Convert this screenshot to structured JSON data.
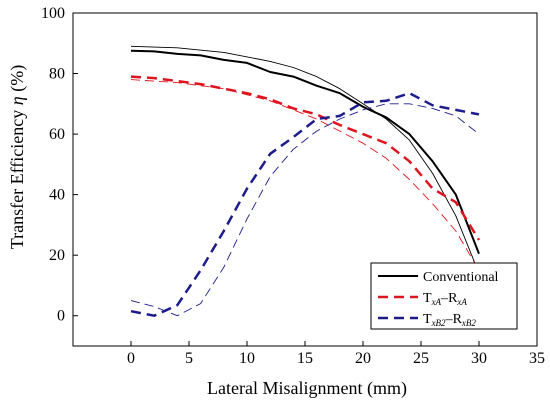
{
  "chart_data": {
    "type": "line",
    "title": "",
    "xlabel": "Lateral Misalignment (mm)",
    "ylabel_text": "Transfer Efficiency ",
    "ylabel_symbol": "η",
    "ylabel_unit": " (%)",
    "xlim": [
      -5,
      35
    ],
    "ylim": [
      -10,
      100
    ],
    "x_ticks": [
      0,
      5,
      10,
      15,
      20,
      25,
      30,
      35
    ],
    "y_ticks": [
      0,
      20,
      40,
      60,
      80,
      100
    ],
    "grid": false,
    "legend_position": "bottom-right",
    "colors": {
      "conventional": "#000000",
      "txa": "#e0141e",
      "txb2": "#1c1c8c"
    },
    "series": [
      {
        "key": "conventional",
        "x": [
          0,
          2,
          4,
          6,
          8,
          10,
          12,
          14,
          16,
          18,
          20,
          22,
          24,
          26,
          28,
          30
        ],
        "values": [
          87.5,
          87.3,
          86.5,
          86,
          84.5,
          83.5,
          80.5,
          79,
          76,
          73.5,
          69,
          65.5,
          60,
          51,
          40,
          20.5
        ],
        "style": "solid"
      },
      {
        "key": "conventional_thin",
        "x": [
          0,
          4,
          8,
          12,
          14,
          16,
          18,
          20,
          22,
          24,
          26,
          28,
          30
        ],
        "values": [
          89,
          88.5,
          87,
          84,
          82,
          79,
          75,
          70,
          65,
          58,
          47,
          33,
          14
        ],
        "style": "solid-thin"
      },
      {
        "key": "txa",
        "x": [
          0,
          2,
          4,
          6,
          8,
          10,
          12,
          14,
          16,
          18,
          20,
          22,
          24,
          26,
          28,
          30
        ],
        "values": [
          79,
          78.5,
          77.5,
          76.5,
          75,
          73.5,
          71.5,
          68.5,
          66.5,
          63,
          60,
          57,
          51,
          42,
          37.5,
          25
        ],
        "style": "dashed"
      },
      {
        "key": "txa_thin",
        "x": [
          0,
          4,
          8,
          12,
          16,
          20,
          22,
          24,
          26,
          28,
          30
        ],
        "values": [
          78,
          77,
          75,
          71,
          65,
          57,
          52,
          45,
          37,
          28,
          15
        ],
        "style": "dashed-thin"
      },
      {
        "key": "txb2",
        "x": [
          0,
          2,
          4,
          6,
          8,
          10,
          12,
          14,
          16,
          18,
          20,
          22,
          24,
          26,
          28,
          30
        ],
        "values": [
          1.5,
          0,
          3.5,
          15,
          28,
          42,
          53.5,
          59,
          65,
          66,
          70.5,
          71,
          73.5,
          69.5,
          68,
          66.5
        ],
        "style": "dashed"
      },
      {
        "key": "txb2_thin",
        "x": [
          0,
          2,
          4,
          6,
          8,
          10,
          12,
          14,
          16,
          18,
          20,
          22,
          24,
          26,
          28,
          30
        ],
        "values": [
          5,
          3,
          0,
          4,
          16,
          32,
          46,
          55,
          61,
          65,
          68,
          70,
          70,
          68.5,
          66,
          60
        ],
        "style": "dashed-thin"
      }
    ],
    "legend": [
      {
        "series": "conventional",
        "label": "Conventional"
      },
      {
        "series": "txa",
        "label_main1": "T",
        "label_sub1": "xA",
        "label_dash": "–R",
        "label_sub2": "xA"
      },
      {
        "series": "txb2",
        "label_main1": "T",
        "label_sub1": "xB2",
        "label_dash": "–R",
        "label_sub2": "xB2"
      }
    ]
  }
}
